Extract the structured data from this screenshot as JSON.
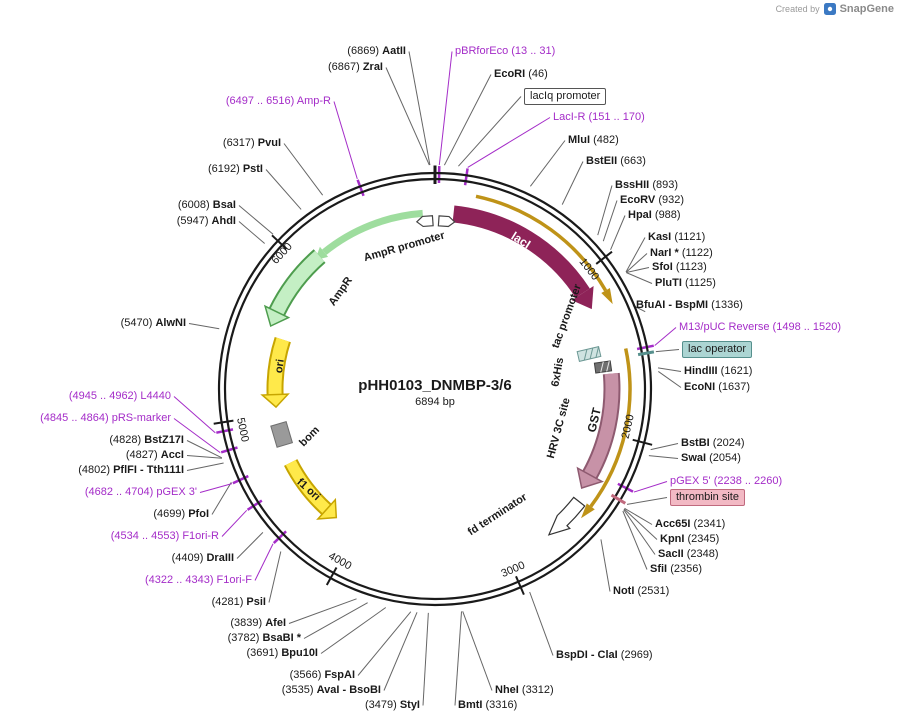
{
  "credit": {
    "created_by": "Created by",
    "brand": "SnapGene"
  },
  "plasmid": {
    "name": "pHH0103_DNMBP-3/6",
    "size": "6894 bp"
  },
  "markers": {
    "m1000": "1000",
    "m2000": "2000",
    "m3000": "3000",
    "m4000": "4000",
    "m5000": "5000",
    "m6000": "6000"
  },
  "features": {
    "ampr_promoter": "AmpR promoter",
    "ampr": "AmpR",
    "ori": "ori",
    "bom": "bom",
    "f1ori": "f1 ori",
    "fd_terminator": "fd terminator",
    "laci": "lacI",
    "tac_promoter": "tac promoter",
    "sixhis": "6xHis",
    "hrv3c": "HRV 3C site",
    "gst": "GST"
  },
  "boxed": {
    "laciq": "lacIq promoter",
    "lacop": "lac operator",
    "thrombin": "thrombin site"
  },
  "sites": {
    "aatii": {
      "name": "AatII",
      "pos": "(6869)"
    },
    "zrai": {
      "name": "ZraI",
      "pos": "(6867)"
    },
    "pbrforeco": {
      "name": "pBRforEco",
      "pos": "(13 .. 31)"
    },
    "ecori": {
      "name": "EcoRI",
      "pos": "(46)"
    },
    "lacir": {
      "name": "LacI-R",
      "pos": "(151 .. 170)"
    },
    "mlui": {
      "name": "MluI",
      "pos": "(482)"
    },
    "bsteii": {
      "name": "BstEII",
      "pos": "(663)"
    },
    "bsshii": {
      "name": "BssHII",
      "pos": "(893)"
    },
    "ecorv": {
      "name": "EcoRV",
      "pos": "(932)"
    },
    "hpai": {
      "name": "HpaI",
      "pos": "(988)"
    },
    "kasi": {
      "name": "KasI",
      "pos": "(1121)"
    },
    "nari": {
      "name": "NarI *",
      "pos": "(1122)"
    },
    "sfoi": {
      "name": "SfoI",
      "pos": "(1123)"
    },
    "pluti": {
      "name": "PluTI",
      "pos": "(1125)"
    },
    "bfuai": {
      "name": "BfuAI - BspMI",
      "pos": "(1336)"
    },
    "m13puc": {
      "name": "M13/pUC Reverse",
      "pos": "(1498 .. 1520)"
    },
    "hindiii": {
      "name": "HindIII",
      "pos": "(1621)"
    },
    "econi": {
      "name": "EcoNI",
      "pos": "(1637)"
    },
    "bstbi": {
      "name": "BstBI",
      "pos": "(2024)"
    },
    "swai": {
      "name": "SwaI",
      "pos": "(2054)"
    },
    "pgex5": {
      "name": "pGEX 5'",
      "pos": "(2238 .. 2260)"
    },
    "acc65i": {
      "name": "Acc65I",
      "pos": "(2341)"
    },
    "kpni": {
      "name": "KpnI",
      "pos": "(2345)"
    },
    "sacii": {
      "name": "SacII",
      "pos": "(2348)"
    },
    "sfii": {
      "name": "SfiI",
      "pos": "(2356)"
    },
    "noti": {
      "name": "NotI",
      "pos": "(2531)"
    },
    "bspdi": {
      "name": "BspDI - ClaI",
      "pos": "(2969)"
    },
    "nhei": {
      "name": "NheI",
      "pos": "(3312)"
    },
    "bmti": {
      "name": "BmtI",
      "pos": "(3316)"
    },
    "styi": {
      "name": "StyI",
      "pos": "(3479)"
    },
    "avai": {
      "name": "AvaI - BsoBI",
      "pos": "(3535)"
    },
    "fspai": {
      "name": "FspAI",
      "pos": "(3566)"
    },
    "bpu10i": {
      "name": "Bpu10I",
      "pos": "(3691)"
    },
    "bsabi": {
      "name": "BsaBI *",
      "pos": "(3782)"
    },
    "afei": {
      "name": "AfeI",
      "pos": "(3839)"
    },
    "psii": {
      "name": "PsiI",
      "pos": "(4281)"
    },
    "f1orif": {
      "name": "F1ori-F",
      "pos": "(4322 .. 4343)"
    },
    "draiii": {
      "name": "DraIII",
      "pos": "(4409)"
    },
    "f1orir": {
      "name": "F1ori-R",
      "pos": "(4534 .. 4553)"
    },
    "pfoi": {
      "name": "PfoI",
      "pos": "(4699)"
    },
    "pgex3": {
      "name": "pGEX 3'",
      "pos": "(4682 .. 4704)"
    },
    "pflfi": {
      "name": "PflFI - Tth111I",
      "pos": "(4802)"
    },
    "acci": {
      "name": "AccI",
      "pos": "(4827)"
    },
    "bstz17i": {
      "name": "BstZ17I",
      "pos": "(4828)"
    },
    "prsmarker": {
      "name": "pRS-marker",
      "pos": "(4845 .. 4864)"
    },
    "l4440": {
      "name": "L4440",
      "pos": "(4945 .. 4962)"
    },
    "alwni": {
      "name": "AlwNI",
      "pos": "(5470)"
    },
    "ahdi": {
      "name": "AhdI",
      "pos": "(5947)"
    },
    "bsai": {
      "name": "BsaI",
      "pos": "(6008)"
    },
    "psti": {
      "name": "PstI",
      "pos": "(6192)"
    },
    "pvui": {
      "name": "PvuI",
      "pos": "(6317)"
    },
    "amprprimer": {
      "name": "Amp-R",
      "pos": "(6497 .. 6516)"
    }
  },
  "colors": {
    "primer_purple": "#A42CC8",
    "backbone": "#1A1A1A",
    "transcript_gold": "#BF9318",
    "laci_maroon": "#8E2358",
    "gst_pink": "#C792A7",
    "ampr_green_fill": "#C4EFC4",
    "ampr_green_border": "#4E9D4E",
    "ori_yellow_fill": "#FFE94A",
    "ori_yellow_border": "#C7A500",
    "lac_operator_bg": "#ACD5D3",
    "thrombin_bg": "#F2B9C4",
    "bom_gray": "#9A9A9A",
    "snapgene_blue": "#3B79C3"
  }
}
